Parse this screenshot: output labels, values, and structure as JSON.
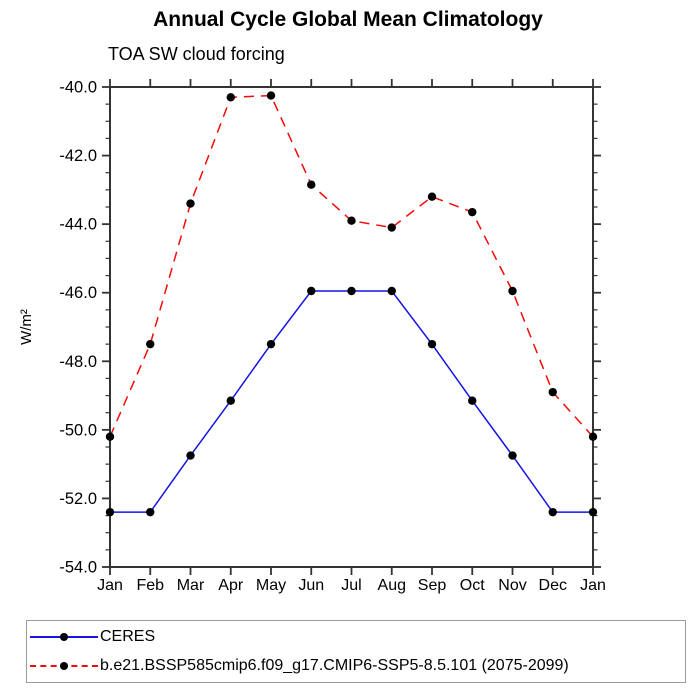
{
  "page": {
    "title": "Annual Cycle Global Mean Climatology",
    "subtitle": "TOA SW cloud forcing"
  },
  "chart_data": {
    "type": "line",
    "title": "Annual Cycle Global Mean Climatology",
    "subtitle": "TOA SW cloud forcing",
    "xlabel": "",
    "ylabel": "W/m²",
    "categories": [
      "Jan",
      "Feb",
      "Mar",
      "Apr",
      "May",
      "Jun",
      "Jul",
      "Aug",
      "Sep",
      "Oct",
      "Nov",
      "Dec",
      "Jan"
    ],
    "ylim": [
      -54.0,
      -40.0
    ],
    "yticks": [
      -40.0,
      -42.0,
      -44.0,
      -46.0,
      -48.0,
      -50.0,
      -52.0,
      -54.0
    ],
    "minor_tick_step": 0.5,
    "grid": false,
    "legend_position": "bottom-left-box",
    "axis_color": "#333333",
    "marker_color": "#000000",
    "series": [
      {
        "name": "CERES",
        "color": "#1414e6",
        "line_style": "solid",
        "marker": "filled-circle",
        "values": [
          -52.4,
          -52.4,
          -50.75,
          -49.15,
          -47.5,
          -45.95,
          -45.95,
          -45.95,
          -47.5,
          -49.15,
          -50.75,
          -52.4,
          -52.4
        ]
      },
      {
        "name": "b.e21.BSSP585cmip6.f09_g17.CMIP6-SSP5-8.5.101 (2075-2099)",
        "color": "#f50a0a",
        "line_style": "dashed",
        "marker": "filled-circle",
        "values": [
          -50.2,
          -47.5,
          -43.4,
          -40.3,
          -40.25,
          -42.85,
          -43.9,
          -44.1,
          -43.2,
          -43.65,
          -45.95,
          -48.9,
          -50.2
        ]
      }
    ]
  }
}
